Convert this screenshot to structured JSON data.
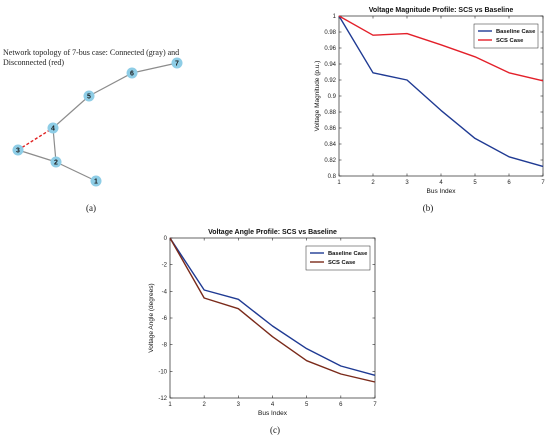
{
  "panels": {
    "a": {
      "caption": "(a)",
      "title_line1": "Network topology of 7-bus case: Connected (gray) and",
      "title_line2": "Disconnected (red)",
      "colors": {
        "node": "#8ecde6",
        "connected": "#8c8c8c",
        "disconnected": "#e02020"
      },
      "nodes": [
        "1",
        "2",
        "3",
        "4",
        "5",
        "6",
        "7"
      ],
      "connected_edges": [
        [
          "1",
          "2"
        ],
        [
          "2",
          "3"
        ],
        [
          "2",
          "4"
        ],
        [
          "4",
          "5"
        ],
        [
          "5",
          "6"
        ],
        [
          "6",
          "7"
        ]
      ],
      "disconnected_edges": [
        [
          "3",
          "4"
        ]
      ]
    },
    "b": {
      "caption": "(b)"
    },
    "c": {
      "caption": "(c)"
    }
  },
  "chart_data": [
    {
      "id": "b",
      "type": "line",
      "title": "Voltage Magnitude Profile: SCS vs Baseline",
      "xlabel": "Bus Index",
      "ylabel": "Voltage Magnitude (p.u.)",
      "x": [
        1,
        2,
        3,
        4,
        5,
        6,
        7
      ],
      "xlim": [
        1,
        7
      ],
      "ylim": [
        0.8,
        1.0
      ],
      "xticks": [
        "1",
        "2",
        "3",
        "4",
        "5",
        "6",
        "7"
      ],
      "yticks": [
        "0.8",
        "0.82",
        "0.84",
        "0.86",
        "0.88",
        "0.9",
        "0.92",
        "0.94",
        "0.96",
        "0.98",
        "1"
      ],
      "legend_position": "top-right",
      "grid": false,
      "series": [
        {
          "name": "Baseline Case",
          "color": "#1f3a93",
          "values": [
            1.0,
            0.929,
            0.92,
            0.882,
            0.847,
            0.824,
            0.812
          ]
        },
        {
          "name": "SCS Case",
          "color": "#e3202a",
          "values": [
            1.0,
            0.976,
            0.978,
            0.964,
            0.949,
            0.929,
            0.919
          ]
        }
      ]
    },
    {
      "id": "c",
      "type": "line",
      "title": "Voltage Angle Profile: SCS vs Baseline",
      "xlabel": "Bus Index",
      "ylabel": "Voltage Angle (degrees)",
      "x": [
        1,
        2,
        3,
        4,
        5,
        6,
        7
      ],
      "xlim": [
        1,
        7
      ],
      "ylim": [
        -12,
        0
      ],
      "xticks": [
        "1",
        "2",
        "3",
        "4",
        "5",
        "6",
        "7"
      ],
      "yticks": [
        "-12",
        "-10",
        "-8",
        "-6",
        "-4",
        "-2",
        "0"
      ],
      "legend_position": "top-right",
      "grid": false,
      "series": [
        {
          "name": "Baseline Case",
          "color": "#1f3a93",
          "values": [
            0,
            -3.9,
            -4.6,
            -6.6,
            -8.3,
            -9.6,
            -10.3
          ]
        },
        {
          "name": "SCS Case",
          "color": "#7a2a1a",
          "values": [
            0,
            -4.5,
            -5.3,
            -7.4,
            -9.2,
            -10.2,
            -10.8
          ]
        }
      ]
    }
  ]
}
